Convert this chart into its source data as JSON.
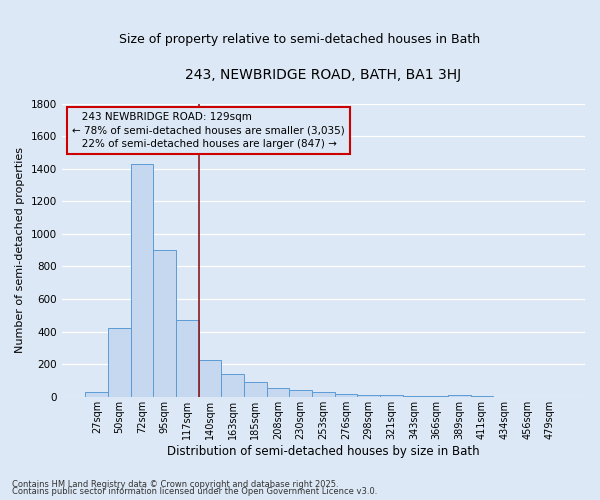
{
  "title": "243, NEWBRIDGE ROAD, BATH, BA1 3HJ",
  "subtitle": "Size of property relative to semi-detached houses in Bath",
  "xlabel": "Distribution of semi-detached houses by size in Bath",
  "ylabel": "Number of semi-detached properties",
  "categories": [
    "27sqm",
    "50sqm",
    "72sqm",
    "95sqm",
    "117sqm",
    "140sqm",
    "163sqm",
    "185sqm",
    "208sqm",
    "230sqm",
    "253sqm",
    "276sqm",
    "298sqm",
    "321sqm",
    "343sqm",
    "366sqm",
    "389sqm",
    "411sqm",
    "434sqm",
    "456sqm",
    "479sqm"
  ],
  "values": [
    28,
    425,
    1430,
    900,
    470,
    225,
    140,
    93,
    57,
    43,
    32,
    20,
    10,
    8,
    4,
    4,
    8,
    4,
    0,
    0,
    0
  ],
  "bar_color": "#c5d8f0",
  "bar_edge_color": "#5b9bd5",
  "background_color": "#dce8f5",
  "grid_color": "#ffffff",
  "ylim": [
    0,
    1800
  ],
  "yticks": [
    0,
    200,
    400,
    600,
    800,
    1000,
    1200,
    1400,
    1600,
    1800
  ],
  "property_label": "243 NEWBRIDGE ROAD: 129sqm",
  "smaller_pct": 78,
  "smaller_count": 3035,
  "larger_pct": 22,
  "larger_count": 847,
  "vline_color": "#8b1a1a",
  "vline_x": 4.52,
  "annotation_box_color": "#cc0000",
  "footnote1": "Contains HM Land Registry data © Crown copyright and database right 2025.",
  "footnote2": "Contains public sector information licensed under the Open Government Licence v3.0.",
  "title_fontsize": 10,
  "subtitle_fontsize": 9,
  "tick_fontsize": 7,
  "ylabel_fontsize": 8,
  "xlabel_fontsize": 8.5,
  "annot_fontsize": 7.5
}
